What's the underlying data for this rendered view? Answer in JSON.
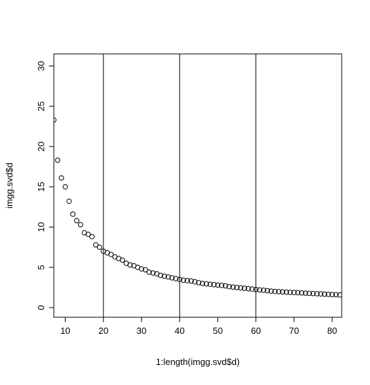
{
  "chart_data": {
    "type": "scatter",
    "title": "",
    "xlabel": "1:length(imgg.svd$d)",
    "ylabel": "imgg.svd$d",
    "xlim": [
      7,
      82.5
    ],
    "ylim": [
      -1.2,
      31.5
    ],
    "x_ticks": [
      "10",
      "20",
      "30",
      "40",
      "50",
      "60",
      "70",
      "80"
    ],
    "y_ticks": [
      "0",
      "5",
      "10",
      "15",
      "20",
      "25",
      "30"
    ],
    "vertical_lines": [
      20,
      40,
      60
    ],
    "grid": false,
    "legend": "none",
    "marker": "open-circle",
    "points": [
      [
        7,
        23.3
      ],
      [
        8,
        18.3
      ],
      [
        9,
        16.1
      ],
      [
        10,
        15.0
      ],
      [
        11,
        13.2
      ],
      [
        12,
        11.6
      ],
      [
        13,
        10.8
      ],
      [
        14,
        10.3
      ],
      [
        15,
        9.3
      ],
      [
        16,
        9.1
      ],
      [
        17,
        8.8
      ],
      [
        18,
        7.8
      ],
      [
        19,
        7.5
      ],
      [
        20,
        7.0
      ],
      [
        21,
        6.8
      ],
      [
        22,
        6.6
      ],
      [
        23,
        6.3
      ],
      [
        24,
        6.1
      ],
      [
        25,
        5.9
      ],
      [
        26,
        5.5
      ],
      [
        27,
        5.3
      ],
      [
        28,
        5.2
      ],
      [
        29,
        5.0
      ],
      [
        30,
        4.8
      ],
      [
        31,
        4.7
      ],
      [
        32,
        4.4
      ],
      [
        33,
        4.3
      ],
      [
        34,
        4.2
      ],
      [
        35,
        4.0
      ],
      [
        36,
        3.9
      ],
      [
        37,
        3.8
      ],
      [
        38,
        3.7
      ],
      [
        39,
        3.6
      ],
      [
        40,
        3.5
      ],
      [
        41,
        3.4
      ],
      [
        42,
        3.35
      ],
      [
        43,
        3.3
      ],
      [
        44,
        3.2
      ],
      [
        45,
        3.1
      ],
      [
        46,
        3.0
      ],
      [
        47,
        2.95
      ],
      [
        48,
        2.9
      ],
      [
        49,
        2.85
      ],
      [
        50,
        2.8
      ],
      [
        51,
        2.75
      ],
      [
        52,
        2.7
      ],
      [
        53,
        2.6
      ],
      [
        54,
        2.55
      ],
      [
        55,
        2.5
      ],
      [
        56,
        2.45
      ],
      [
        57,
        2.4
      ],
      [
        58,
        2.35
      ],
      [
        59,
        2.3
      ],
      [
        60,
        2.25
      ],
      [
        61,
        2.2
      ],
      [
        62,
        2.15
      ],
      [
        63,
        2.1
      ],
      [
        64,
        2.05
      ],
      [
        65,
        2.0
      ],
      [
        66,
        1.98
      ],
      [
        67,
        1.95
      ],
      [
        68,
        1.92
      ],
      [
        69,
        1.9
      ],
      [
        70,
        1.87
      ],
      [
        71,
        1.85
      ],
      [
        72,
        1.82
      ],
      [
        73,
        1.8
      ],
      [
        74,
        1.77
      ],
      [
        75,
        1.75
      ],
      [
        76,
        1.72
      ],
      [
        77,
        1.7
      ],
      [
        78,
        1.67
      ],
      [
        79,
        1.65
      ],
      [
        80,
        1.62
      ],
      [
        81,
        1.6
      ],
      [
        82,
        1.57
      ]
    ]
  }
}
